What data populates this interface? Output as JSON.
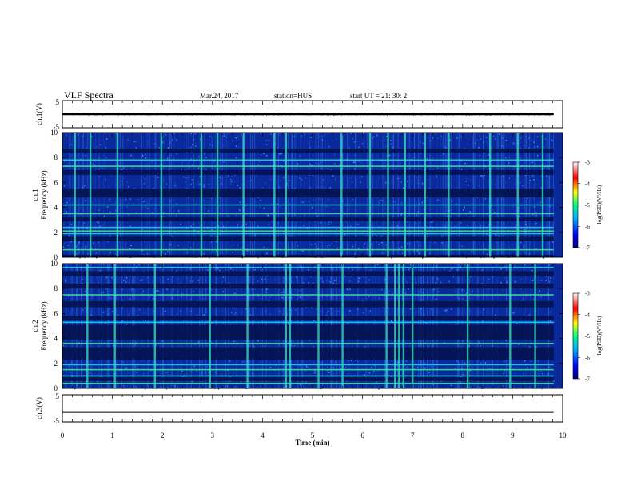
{
  "header": {
    "title": "VLF Spectra",
    "date": "Mar.24, 2017",
    "station": "station=HUS",
    "start_ut": "start  UT =   21: 30: 2"
  },
  "chart_data": [
    {
      "type": "line",
      "panel": "ch1-waveform",
      "ylabel": "ch.1(V)",
      "ylim": [
        -5,
        5
      ],
      "yticks": [
        "5",
        "-5"
      ],
      "x_range_min": [
        0,
        9.82
      ],
      "series": [
        {
          "level": 0.0,
          "noise_amplitude": 0.35
        }
      ]
    },
    {
      "type": "heatmap",
      "panel": "ch1-spectrogram",
      "ylabel": "ch.1",
      "ylabel2": "Frequency  (kHz)",
      "ylim": [
        0,
        10
      ],
      "yticks": [
        "0",
        "2",
        "4",
        "6",
        "8",
        "10"
      ],
      "x_range_min": [
        0,
        9.82
      ],
      "colorbar": {
        "label": "log(PSD)(V²/Hz)",
        "range": [
          -7,
          -3
        ],
        "ticks": [
          "-3",
          "-4",
          "-5",
          "-6",
          "-7"
        ]
      },
      "dark_bands_khz": [
        [
          0.0,
          0.2
        ],
        [
          1.3,
          1.7
        ],
        [
          2.9,
          3.2
        ],
        [
          4.8,
          5.5
        ],
        [
          6.6,
          7.0
        ],
        [
          8.4,
          8.7
        ]
      ],
      "bright_lines_khz": [
        0.6,
        1.9,
        2.1,
        2.4,
        3.5,
        4.2,
        7.3,
        7.8
      ],
      "bursts_min": [
        0.25,
        0.56,
        1.1,
        1.98,
        2.78,
        3.1,
        3.62,
        4.24,
        4.47,
        5.58,
        6.15,
        6.51,
        6.85,
        7.25,
        7.72,
        8.55,
        9.1,
        9.6
      ]
    },
    {
      "type": "heatmap",
      "panel": "ch2-spectrogram",
      "ylabel": "ch.2",
      "ylabel2": "Frequency  (kHz)",
      "ylim": [
        0,
        10
      ],
      "yticks": [
        "0",
        "2",
        "4",
        "6",
        "8",
        "10"
      ],
      "x_range_min": [
        0,
        9.82
      ],
      "colorbar": {
        "label": "log(PSD)(V²/Hz)",
        "range": [
          -7,
          -3
        ],
        "ticks": [
          "-3",
          "-4",
          "-5",
          "-6",
          "-7"
        ]
      },
      "dark_bands_khz": [
        [
          0.6,
          0.9
        ],
        [
          2.3,
          3.3
        ],
        [
          3.9,
          5.1
        ],
        [
          5.5,
          5.8
        ],
        [
          6.5,
          7.0
        ],
        [
          8.0,
          8.4
        ],
        [
          9.0,
          9.4
        ]
      ],
      "bright_lines_khz": [
        0.4,
        1.0,
        1.5,
        1.9,
        3.6,
        5.3,
        7.5,
        9.7
      ],
      "bursts_min": [
        0.5,
        1.05,
        1.85,
        2.95,
        3.7,
        4.47,
        4.55,
        5.12,
        5.6,
        6.48,
        6.65,
        6.73,
        6.82,
        7.0,
        8.1,
        8.95,
        9.45
      ]
    },
    {
      "type": "line",
      "panel": "ch3-waveform",
      "ylabel": "ch.3(V)",
      "ylim": [
        -5,
        5
      ],
      "yticks": [
        "5",
        "-5"
      ],
      "x_range_min": [
        0,
        9.82
      ],
      "series": [
        {
          "level": -1.5,
          "noise_amplitude": 0.0
        }
      ]
    }
  ],
  "time_axis": {
    "xlabel": "Time  (min)",
    "xlim": [
      0,
      10
    ],
    "xticks": [
      "0",
      "1",
      "2",
      "3",
      "4",
      "5",
      "6",
      "7",
      "8",
      "9",
      "10"
    ]
  }
}
